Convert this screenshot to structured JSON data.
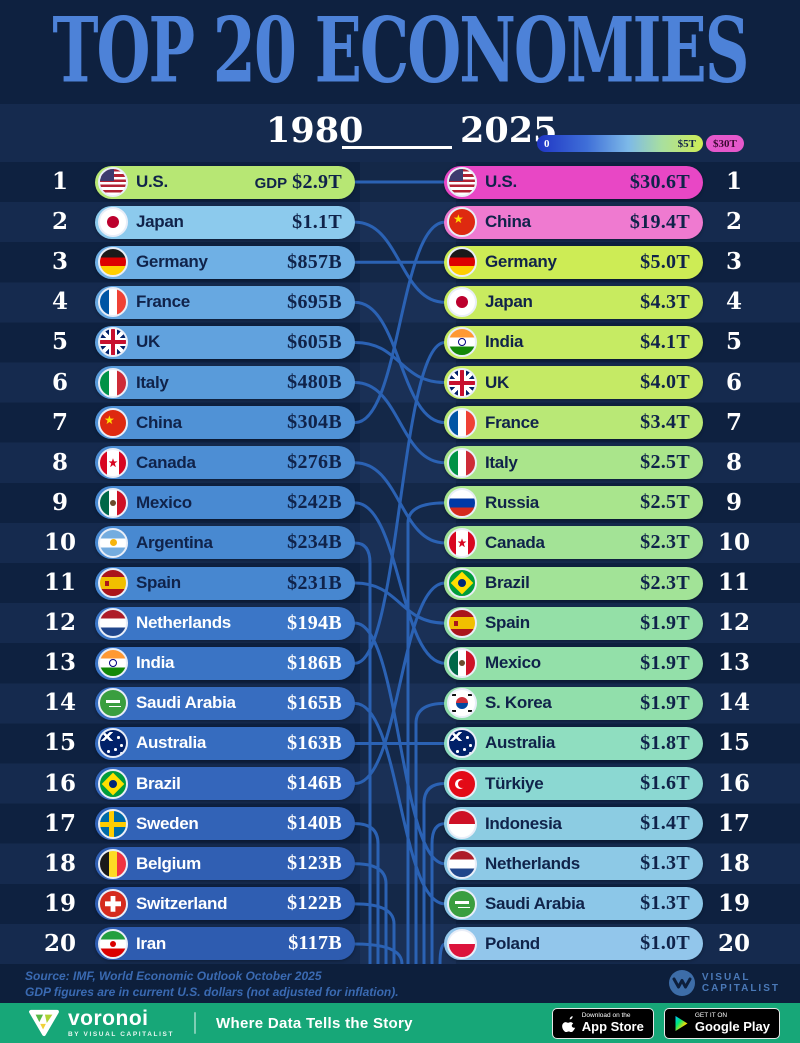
{
  "title": "TOP 20 ECONOMIES",
  "header": {
    "year_left": "1980",
    "year_right": "2025",
    "legend": {
      "min": "0",
      "mid": "$5T",
      "max": "$30T"
    }
  },
  "colors": {
    "background": "#0e2140",
    "stripe": "#152a4e",
    "connector": "#2b62b4",
    "title_blue": "#4d82d8",
    "legend_magenta": "#e558cb",
    "bottom_bar_green": "#17a778"
  },
  "chart_data": {
    "type": "table",
    "title": "Top 20 Economies",
    "years": [
      "1980",
      "2025"
    ],
    "unit": "current U.S. dollars (not adjusted for inflation)",
    "legend": {
      "scale_min_label": "0",
      "scale_mid_label": "$5T",
      "scale_max_label": "$30T"
    },
    "series": [
      {
        "year": "1980",
        "rows": [
          {
            "rank": "1",
            "country": "U.S.",
            "value_prefix": "GDP",
            "value": "$2.9T",
            "value_billions": 2900,
            "flag": "us",
            "pill": "#b7e774",
            "text": "dark"
          },
          {
            "rank": "2",
            "country": "Japan",
            "value_prefix": "",
            "value": "$1.1T",
            "value_billions": 1100,
            "flag": "jp",
            "pill": "#8ccaed",
            "text": "dark"
          },
          {
            "rank": "3",
            "country": "Germany",
            "value_prefix": "",
            "value": "$857B",
            "value_billions": 857,
            "flag": "de",
            "pill": "#6fb0e5",
            "text": "dark"
          },
          {
            "rank": "4",
            "country": "France",
            "value_prefix": "",
            "value": "$695B",
            "value_billions": 695,
            "flag": "fr",
            "pill": "#67a8e1",
            "text": "dark"
          },
          {
            "rank": "5",
            "country": "UK",
            "value_prefix": "",
            "value": "$605B",
            "value_billions": 605,
            "flag": "uk",
            "pill": "#61a2de",
            "text": "dark"
          },
          {
            "rank": "6",
            "country": "Italy",
            "value_prefix": "",
            "value": "$480B",
            "value_billions": 480,
            "flag": "it",
            "pill": "#599bda",
            "text": "dark"
          },
          {
            "rank": "7",
            "country": "China",
            "value_prefix": "",
            "value": "$304B",
            "value_billions": 304,
            "flag": "cn",
            "pill": "#5092d6",
            "text": "dark"
          },
          {
            "rank": "8",
            "country": "Canada",
            "value_prefix": "",
            "value": "$276B",
            "value_billions": 276,
            "flag": "ca",
            "pill": "#4d8ed4",
            "text": "dark"
          },
          {
            "rank": "9",
            "country": "Mexico",
            "value_prefix": "",
            "value": "$242B",
            "value_billions": 242,
            "flag": "mx",
            "pill": "#498ad2",
            "text": "dark"
          },
          {
            "rank": "10",
            "country": "Argentina",
            "value_prefix": "",
            "value": "$234B",
            "value_billions": 234,
            "flag": "ar",
            "pill": "#4889d1",
            "text": "dark"
          },
          {
            "rank": "11",
            "country": "Spain",
            "value_prefix": "",
            "value": "$231B",
            "value_billions": 231,
            "flag": "es",
            "pill": "#4787d0",
            "text": "dark"
          },
          {
            "rank": "12",
            "country": "Netherlands",
            "value_prefix": "",
            "value": "$194B",
            "value_billions": 194,
            "flag": "nl",
            "pill": "#3b76c7",
            "text": "light"
          },
          {
            "rank": "13",
            "country": "India",
            "value_prefix": "",
            "value": "$186B",
            "value_billions": 186,
            "flag": "in",
            "pill": "#3a74c5",
            "text": "light"
          },
          {
            "rank": "14",
            "country": "Saudi Arabia",
            "value_prefix": "",
            "value": "$165B",
            "value_billions": 165,
            "flag": "sa",
            "pill": "#376dc0",
            "text": "light"
          },
          {
            "rank": "15",
            "country": "Australia",
            "value_prefix": "",
            "value": "$163B",
            "value_billions": 163,
            "flag": "au",
            "pill": "#366cbf",
            "text": "light"
          },
          {
            "rank": "16",
            "country": "Brazil",
            "value_prefix": "",
            "value": "$146B",
            "value_billions": 146,
            "flag": "br",
            "pill": "#3466bb",
            "text": "light"
          },
          {
            "rank": "17",
            "country": "Sweden",
            "value_prefix": "",
            "value": "$140B",
            "value_billions": 140,
            "flag": "se",
            "pill": "#3263b7",
            "text": "light"
          },
          {
            "rank": "18",
            "country": "Belgium",
            "value_prefix": "",
            "value": "$123B",
            "value_billions": 123,
            "flag": "be",
            "pill": "#305fb3",
            "text": "light"
          },
          {
            "rank": "19",
            "country": "Switzerland",
            "value_prefix": "",
            "value": "$122B",
            "value_billions": 122,
            "flag": "ch",
            "pill": "#2f5eb2",
            "text": "light"
          },
          {
            "rank": "20",
            "country": "Iran",
            "value_prefix": "",
            "value": "$117B",
            "value_billions": 117,
            "flag": "ir",
            "pill": "#2e5cb0",
            "text": "light"
          }
        ]
      },
      {
        "year": "2025",
        "rows": [
          {
            "rank": "1",
            "country": "U.S.",
            "value_prefix": "",
            "value": "$30.6T",
            "value_billions": 30600,
            "flag": "us",
            "pill": "#e847c5",
            "text": "dark"
          },
          {
            "rank": "2",
            "country": "China",
            "value_prefix": "",
            "value": "$19.4T",
            "value_billions": 19400,
            "flag": "cn",
            "pill": "#ef7ad0",
            "text": "dark"
          },
          {
            "rank": "3",
            "country": "Germany",
            "value_prefix": "",
            "value": "$5.0T",
            "value_billions": 5000,
            "flag": "de",
            "pill": "#cdec55",
            "text": "dark"
          },
          {
            "rank": "4",
            "country": "Japan",
            "value_prefix": "",
            "value": "$4.3T",
            "value_billions": 4300,
            "flag": "jp",
            "pill": "#c8eb5f",
            "text": "dark"
          },
          {
            "rank": "5",
            "country": "India",
            "value_prefix": "",
            "value": "$4.1T",
            "value_billions": 4100,
            "flag": "in",
            "pill": "#c6eb63",
            "text": "dark"
          },
          {
            "rank": "6",
            "country": "UK",
            "value_prefix": "",
            "value": "$4.0T",
            "value_billions": 4000,
            "flag": "uk",
            "pill": "#c5ea65",
            "text": "dark"
          },
          {
            "rank": "7",
            "country": "France",
            "value_prefix": "",
            "value": "$3.4T",
            "value_billions": 3400,
            "flag": "fr",
            "pill": "#b9e876",
            "text": "dark"
          },
          {
            "rank": "8",
            "country": "Italy",
            "value_prefix": "",
            "value": "$2.5T",
            "value_billions": 2500,
            "flag": "it",
            "pill": "#aae58b",
            "text": "dark"
          },
          {
            "rank": "9",
            "country": "Russia",
            "value_prefix": "",
            "value": "$2.5T",
            "value_billions": 2500,
            "flag": "ru",
            "pill": "#a9e58d",
            "text": "dark"
          },
          {
            "rank": "10",
            "country": "Canada",
            "value_prefix": "",
            "value": "$2.3T",
            "value_billions": 2300,
            "flag": "ca",
            "pill": "#a3e396",
            "text": "dark"
          },
          {
            "rank": "11",
            "country": "Brazil",
            "value_prefix": "",
            "value": "$2.3T",
            "value_billions": 2300,
            "flag": "br",
            "pill": "#a2e397",
            "text": "dark"
          },
          {
            "rank": "12",
            "country": "Spain",
            "value_prefix": "",
            "value": "$1.9T",
            "value_billions": 1900,
            "flag": "es",
            "pill": "#94e0a7",
            "text": "dark"
          },
          {
            "rank": "13",
            "country": "Mexico",
            "value_prefix": "",
            "value": "$1.9T",
            "value_billions": 1900,
            "flag": "mx",
            "pill": "#93e0a9",
            "text": "dark"
          },
          {
            "rank": "14",
            "country": "S. Korea",
            "value_prefix": "",
            "value": "$1.9T",
            "value_billions": 1900,
            "flag": "kr",
            "pill": "#91dfab",
            "text": "dark"
          },
          {
            "rank": "15",
            "country": "Australia",
            "value_prefix": "",
            "value": "$1.8T",
            "value_billions": 1800,
            "flag": "au",
            "pill": "#8fdec0",
            "text": "dark"
          },
          {
            "rank": "16",
            "country": "Türkiye",
            "value_prefix": "",
            "value": "$1.6T",
            "value_billions": 1600,
            "flag": "tr",
            "pill": "#8bd8d2",
            "text": "dark"
          },
          {
            "rank": "17",
            "country": "Indonesia",
            "value_prefix": "",
            "value": "$1.4T",
            "value_billions": 1400,
            "flag": "id",
            "pill": "#8ccce2",
            "text": "dark"
          },
          {
            "rank": "18",
            "country": "Netherlands",
            "value_prefix": "",
            "value": "$1.3T",
            "value_billions": 1300,
            "flag": "nl",
            "pill": "#8dc9e6",
            "text": "dark"
          },
          {
            "rank": "19",
            "country": "Saudi Arabia",
            "value_prefix": "",
            "value": "$1.3T",
            "value_billions": 1300,
            "flag": "sa",
            "pill": "#8cc7e8",
            "text": "dark"
          },
          {
            "rank": "20",
            "country": "Poland",
            "value_prefix": "",
            "value": "$1.0T",
            "value_billions": 1000,
            "flag": "pl",
            "pill": "#92c6eb",
            "text": "dark"
          }
        ]
      }
    ],
    "rank_links_1980_to_2025": [
      [
        1,
        1
      ],
      [
        2,
        4
      ],
      [
        3,
        3
      ],
      [
        4,
        7
      ],
      [
        5,
        6
      ],
      [
        6,
        8
      ],
      [
        7,
        2
      ],
      [
        8,
        10
      ],
      [
        9,
        13
      ],
      [
        11,
        12
      ],
      [
        12,
        18
      ],
      [
        13,
        5
      ],
      [
        14,
        19
      ],
      [
        15,
        15
      ],
      [
        16,
        11
      ]
    ],
    "left_exit_ranks": [
      10,
      17,
      18,
      19,
      20
    ],
    "right_entry_ranks": [
      9,
      14,
      16,
      17,
      20
    ],
    "dropped_from_top20": [
      "Argentina",
      "Sweden",
      "Belgium",
      "Switzerland",
      "Iran"
    ],
    "new_in_top20": [
      "Russia",
      "S. Korea",
      "Türkiye",
      "Indonesia",
      "Poland"
    ]
  },
  "footer": {
    "source_line1": "Source: IMF, World Economic Outlook October 2025",
    "source_line2": "GDP figures are in current U.S. dollars (not adjusted for inflation).",
    "vc_line1": "VISUAL",
    "vc_line2": "CAPITALIST"
  },
  "bottom_bar": {
    "brand": "voronoi",
    "brand_sub": "BY VISUAL CAPITALIST",
    "tagline": "Where Data Tells the Story",
    "app_store": {
      "line1": "Download on the",
      "line2": "App Store"
    },
    "google_play": {
      "line1": "GET IT ON",
      "line2": "Google Play"
    }
  }
}
